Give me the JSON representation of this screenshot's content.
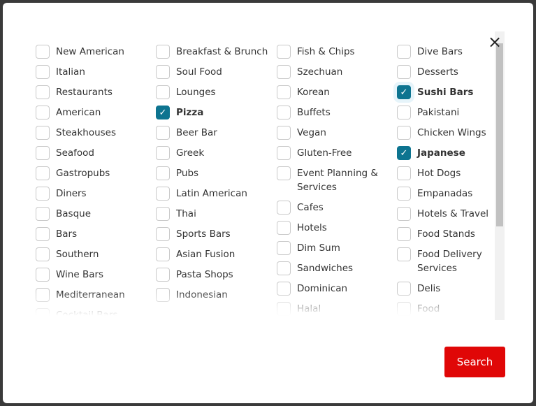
{
  "columns": [
    [
      {
        "label": "New American"
      },
      {
        "label": "Italian"
      },
      {
        "label": "Restaurants"
      },
      {
        "label": "American"
      },
      {
        "label": "Steakhouses"
      },
      {
        "label": "Seafood"
      },
      {
        "label": "Gastropubs"
      },
      {
        "label": "Diners"
      },
      {
        "label": "Basque"
      },
      {
        "label": "Bars"
      },
      {
        "label": "Southern"
      },
      {
        "label": "Wine Bars"
      },
      {
        "label": "Mediterranean"
      },
      {
        "label": "Cocktail Bars"
      }
    ],
    [
      {
        "label": "Breakfast & Brunch"
      },
      {
        "label": "Soul Food"
      },
      {
        "label": "Lounges"
      },
      {
        "label": "Pizza",
        "checked": true
      },
      {
        "label": "Beer Bar"
      },
      {
        "label": "Greek"
      },
      {
        "label": "Pubs"
      },
      {
        "label": "Latin American"
      },
      {
        "label": "Thai"
      },
      {
        "label": "Sports Bars"
      },
      {
        "label": "Asian Fusion"
      },
      {
        "label": "Pasta Shops"
      },
      {
        "label": "Indonesian"
      }
    ],
    [
      {
        "label": "Fish & Chips"
      },
      {
        "label": "Szechuan"
      },
      {
        "label": "Korean"
      },
      {
        "label": "Buffets"
      },
      {
        "label": "Vegan"
      },
      {
        "label": "Gluten-Free"
      },
      {
        "label": "Event Planning & Services"
      },
      {
        "label": "Cafes"
      },
      {
        "label": "Hotels"
      },
      {
        "label": "Dim Sum"
      },
      {
        "label": "Sandwiches"
      },
      {
        "label": "Dominican"
      },
      {
        "label": "Halal"
      }
    ],
    [
      {
        "label": "Dive Bars"
      },
      {
        "label": "Desserts"
      },
      {
        "label": "Sushi Bars",
        "checked": true,
        "focused": true
      },
      {
        "label": "Pakistani"
      },
      {
        "label": "Chicken Wings"
      },
      {
        "label": "Japanese",
        "checked": true
      },
      {
        "label": "Hot Dogs"
      },
      {
        "label": "Empanadas"
      },
      {
        "label": "Hotels & Travel"
      },
      {
        "label": "Food Stands"
      },
      {
        "label": "Food Delivery Services"
      },
      {
        "label": "Delis"
      },
      {
        "label": "Food"
      }
    ]
  ],
  "close_icon": "×",
  "check_icon": "✓",
  "search_label": "Search",
  "colors": {
    "checked": "#0d7490",
    "search": "#e00707"
  }
}
